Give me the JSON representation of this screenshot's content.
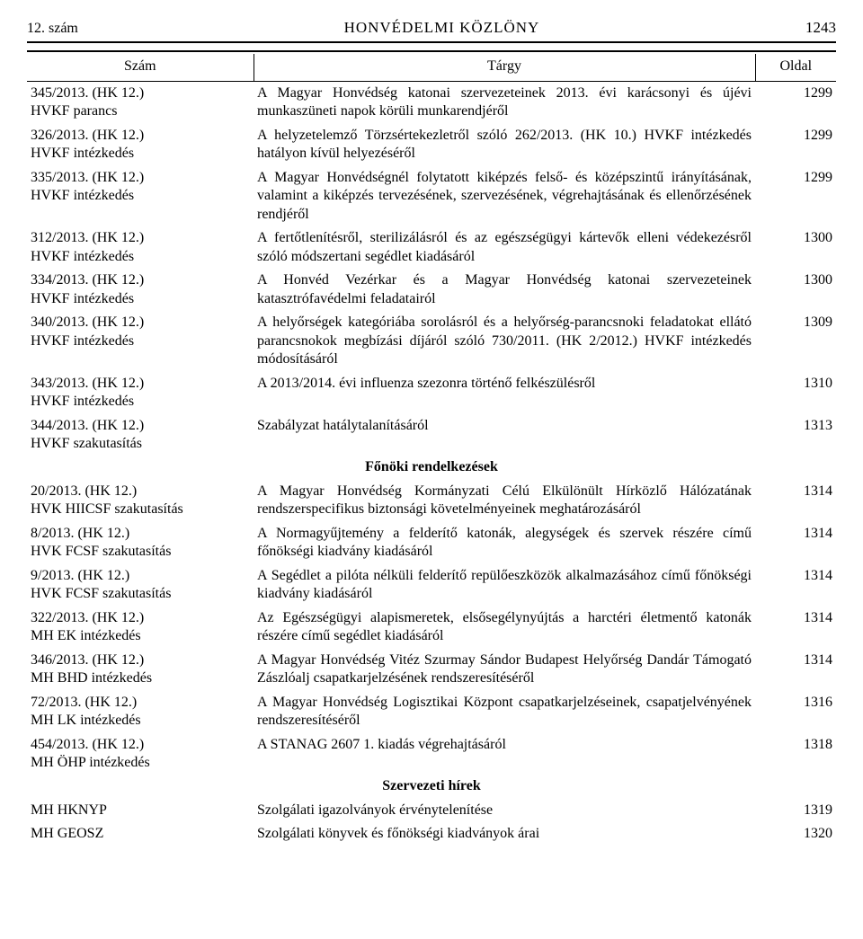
{
  "page_header": {
    "issue": "12. szám",
    "title": "HONVÉDELMI KÖZLÖNY",
    "page_no": "1243"
  },
  "columns": {
    "szam": "Szám",
    "targy": "Tárgy",
    "oldal": "Oldal"
  },
  "rows": [
    {
      "num1": "345/2013. (HK 12.)",
      "num2": "HVKF parancs",
      "targy": "A Magyar Honvédség katonai szervezeteinek 2013. évi karácsonyi és újévi munkaszüneti napok körüli munkarendjéről",
      "page": "1299"
    },
    {
      "num1": "326/2013. (HK 12.)",
      "num2": "HVKF intézkedés",
      "targy": "A helyzetelemző Törzsértekezletről szóló 262/2013. (HK 10.) HVKF intézkedés hatályon kívül helyezéséről",
      "page": "1299"
    },
    {
      "num1": "335/2013. (HK 12.)",
      "num2": "HVKF intézkedés",
      "targy": "A Magyar Honvédségnél folytatott kiképzés felső- és középszintű irányításának, valamint a kiképzés tervezésének, szervezésének, végrehajtásának és ellenőrzésének rendjéről",
      "page": "1299"
    },
    {
      "num1": "312/2013. (HK 12.)",
      "num2": "HVKF intézkedés",
      "targy": "A fertőtlenítésről, sterilizálásról és az egészségügyi kártevők elleni védekezésről szóló módszertani segédlet kiadásáról",
      "page": "1300"
    },
    {
      "num1": "334/2013. (HK 12.)",
      "num2": "HVKF intézkedés",
      "targy": "A Honvéd Vezérkar és a Magyar Honvédség katonai szervezeteinek katasztrófavédelmi feladatairól",
      "page": "1300"
    },
    {
      "num1": "340/2013. (HK 12.)",
      "num2": "HVKF intézkedés",
      "targy": "A helyőrségek kategóriába sorolásról és a helyőrség-parancsnoki feladatokat ellátó parancsnokok megbízási díjáról szóló 730/2011. (HK 2/2012.) HVKF intézkedés módosításáról",
      "page": "1309"
    },
    {
      "num1": "343/2013. (HK 12.)",
      "num2": "HVKF intézkedés",
      "targy": "A 2013/2014. évi influenza szezonra történő felkészülésről",
      "page": "1310"
    },
    {
      "num1": "344/2013. (HK 12.)",
      "num2": "HVKF szakutasítás",
      "targy": "Szabályzat hatálytalanításáról",
      "page": "1313"
    }
  ],
  "section2": {
    "heading": "Főnöki rendelkezések",
    "rows": [
      {
        "num1": "20/2013. (HK 12.)",
        "num2": "HVK HIICSF szakutasítás",
        "targy": "A Magyar Honvédség Kormányzati Célú Elkülönült Hírközlő Hálózatának rendszerspecifikus biztonsági követelményeinek meghatározásáról",
        "page": "1314"
      },
      {
        "num1": "8/2013. (HK 12.)",
        "num2": "HVK FCSF szakutasítás",
        "targy": "A Normagyűjtemény a felderítő katonák, alegységek és szervek részére című főnökségi kiadvány kiadásáról",
        "page": "1314"
      },
      {
        "num1": "9/2013. (HK 12.)",
        "num2": "HVK FCSF szakutasítás",
        "targy": "A Segédlet a pilóta nélküli felderítő repülőeszközök alkalmazásához című főnökségi kiadvány kiadásáról",
        "page": "1314"
      },
      {
        "num1": "322/2013. (HK 12.)",
        "num2": "MH EK intézkedés",
        "targy": "Az Egészségügyi alapismeretek, elsősegélynyújtás a harctéri életmentő katonák részére című segédlet kiadásáról",
        "page": "1314"
      },
      {
        "num1": "346/2013. (HK 12.)",
        "num2": "MH BHD intézkedés",
        "targy": "A Magyar Honvédség Vitéz Szurmay Sándor Budapest Helyőrség Dandár Támogató Zászlóalj csapatkarjelzésének rendszeresítéséről",
        "page": "1314"
      },
      {
        "num1": "72/2013. (HK 12.)",
        "num2": "MH LK intézkedés",
        "targy": "A Magyar Honvédség Logisztikai Központ csapatkarjelzéseinek, csapatjelvényének rendszeresítéséről",
        "page": "1316"
      },
      {
        "num1": "454/2013. (HK 12.)",
        "num2": "MH ÖHP intézkedés",
        "targy": "A STANAG 2607 1. kiadás végrehajtásáról",
        "page": "1318"
      }
    ]
  },
  "section3": {
    "heading": "Szervezeti hírek",
    "rows": [
      {
        "num1": "MH HKNYP",
        "num2": "",
        "targy": "Szolgálati igazolványok érvénytelenítése",
        "page": "1319"
      },
      {
        "num1": "MH GEOSZ",
        "num2": "",
        "targy": "Szolgálati könyvek és főnökségi kiadványok árai",
        "page": "1320"
      }
    ]
  },
  "style": {
    "background_color": "#ffffff",
    "text_color": "#000000",
    "rule_color": "#000000",
    "font_family": "Times New Roman",
    "body_fontsize_pt": 12,
    "header_title_fontsize_pt": 13,
    "col_widths_pct": [
      28,
      62,
      10
    ]
  }
}
